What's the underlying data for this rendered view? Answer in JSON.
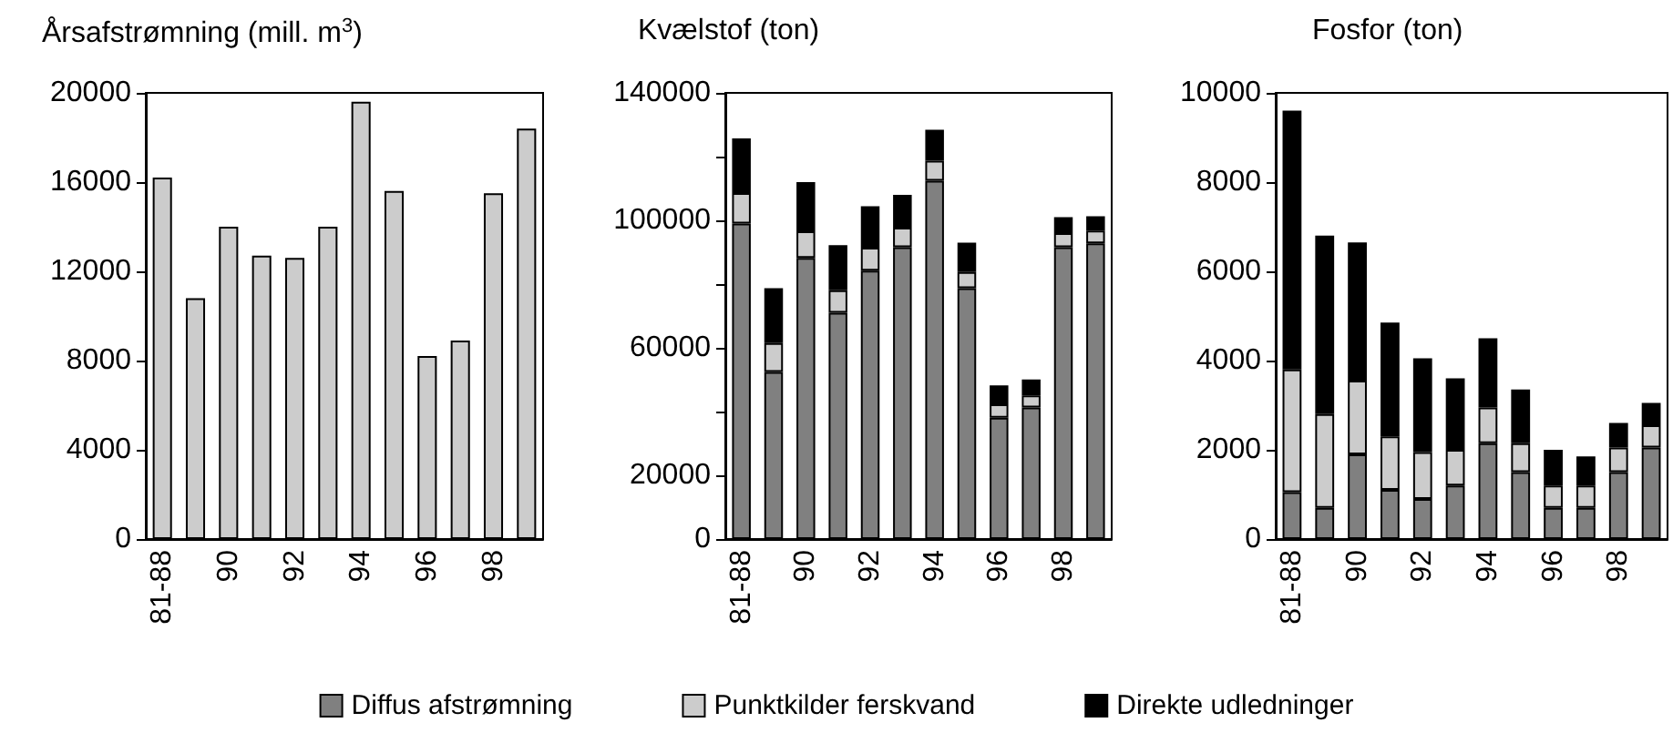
{
  "chart_data": [
    {
      "type": "bar",
      "title": "Årsafstrømning (mill. m$^{3}$)",
      "categories": [
        "81-88",
        null,
        "90",
        null,
        "92",
        null,
        "94",
        null,
        "96",
        null,
        "98",
        null
      ],
      "values": [
        16200,
        10800,
        14000,
        12700,
        12600,
        14000,
        19600,
        15600,
        8200,
        8900,
        15500,
        18400
      ],
      "color": "#cccccc",
      "ylim": [
        0,
        20000
      ],
      "yticks": [
        0,
        4000,
        8000,
        12000,
        16000,
        20000
      ]
    },
    {
      "type": "bar",
      "title": "Kvælstof (ton)",
      "categories": [
        "81-88",
        null,
        "90",
        null,
        "92",
        null,
        "94",
        null,
        "96",
        null,
        "98",
        null
      ],
      "stacked": true,
      "series": [
        {
          "color": "#808080",
          "values": [
            99000,
            52400,
            88200,
            71000,
            84200,
            91600,
            112400,
            78700,
            38100,
            41300,
            91600,
            92800
          ]
        },
        {
          "color": "#cccccc",
          "values": [
            9600,
            9100,
            8400,
            7100,
            7200,
            6100,
            6300,
            5100,
            4200,
            3800,
            4400,
            4000
          ]
        },
        {
          "color": "#000000",
          "values": [
            17100,
            17200,
            15400,
            14100,
            13000,
            10300,
            9700,
            9200,
            5900,
            5000,
            5000,
            4500
          ]
        }
      ],
      "ylim": [
        0,
        140000
      ],
      "yticks": [
        0,
        20000,
        {
          "value": 40000,
          "label": null
        },
        60000,
        {
          "value": 80000,
          "label": null
        },
        100000,
        {
          "value": 120000,
          "label": null
        },
        140000
      ]
    },
    {
      "type": "bar",
      "title": "Fosfor (ton)",
      "categories": [
        "81-88",
        null,
        "90",
        null,
        "92",
        null,
        "94",
        null,
        "96",
        null,
        "98",
        null
      ],
      "stacked": true,
      "series": [
        {
          "name": "Diffus afstrømning",
          "color": "#808080",
          "values": [
            1050,
            700,
            1900,
            1100,
            900,
            1200,
            2150,
            1500,
            700,
            700,
            1500,
            2050
          ]
        },
        {
          "name": "Punktkilder ferskvand",
          "color": "#cccccc",
          "values": [
            2750,
            2100,
            1650,
            1200,
            1050,
            800,
            800,
            650,
            500,
            500,
            550,
            500
          ]
        },
        {
          "name": "Direkte udledninger",
          "color": "#000000",
          "values": [
            5800,
            4000,
            3100,
            2550,
            2100,
            1600,
            1550,
            1200,
            800,
            650,
            550,
            500
          ]
        }
      ],
      "ylim": [
        0,
        10000
      ],
      "yticks": [
        0,
        2000,
        4000,
        6000,
        8000,
        10000
      ],
      "legend": "bottom"
    }
  ]
}
